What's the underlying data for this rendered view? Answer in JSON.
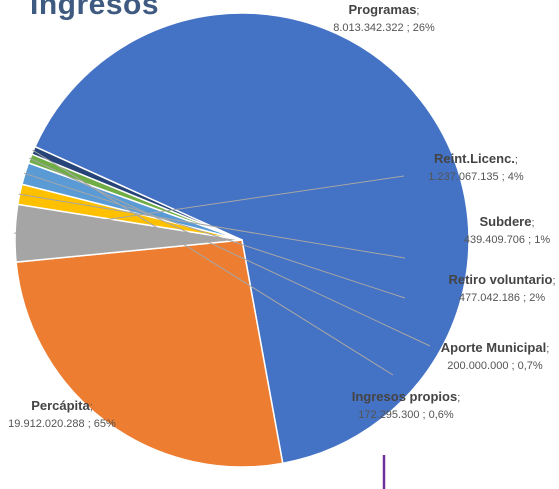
{
  "chart_data": {
    "type": "pie",
    "title": "Ingresos",
    "series": [
      {
        "name": "Percápita",
        "value": 19912020288,
        "value_label": "19.912.020.288",
        "percent_label": "65%",
        "color": "#4472c4"
      },
      {
        "name": "Programas",
        "value": 8013342322,
        "value_label": "8.013.342.322",
        "percent_label": "26%",
        "color": "#ed7d31"
      },
      {
        "name": "Reint.Licenc.",
        "value": 1237067135,
        "value_label": "1.237.067.135",
        "percent_label": "4%",
        "color": "#a5a5a5"
      },
      {
        "name": "Subdere",
        "value": 439409706,
        "value_label": "439.409.706",
        "percent_label": "1%",
        "color": "#ffc000"
      },
      {
        "name": "Retiro voluntario",
        "value": 477042186,
        "value_label": "477.042.186",
        "percent_label": "2%",
        "color": "#5b9bd5"
      },
      {
        "name": "Aporte Municipal",
        "value": 200000000,
        "value_label": "200.000.000",
        "percent_label": "0,7%",
        "color": "#70ad47"
      },
      {
        "name": "Ingresos propios",
        "value": 172295300,
        "value_label": "172.295.300",
        "percent_label": "0,6%",
        "color": "#264478"
      }
    ]
  }
}
